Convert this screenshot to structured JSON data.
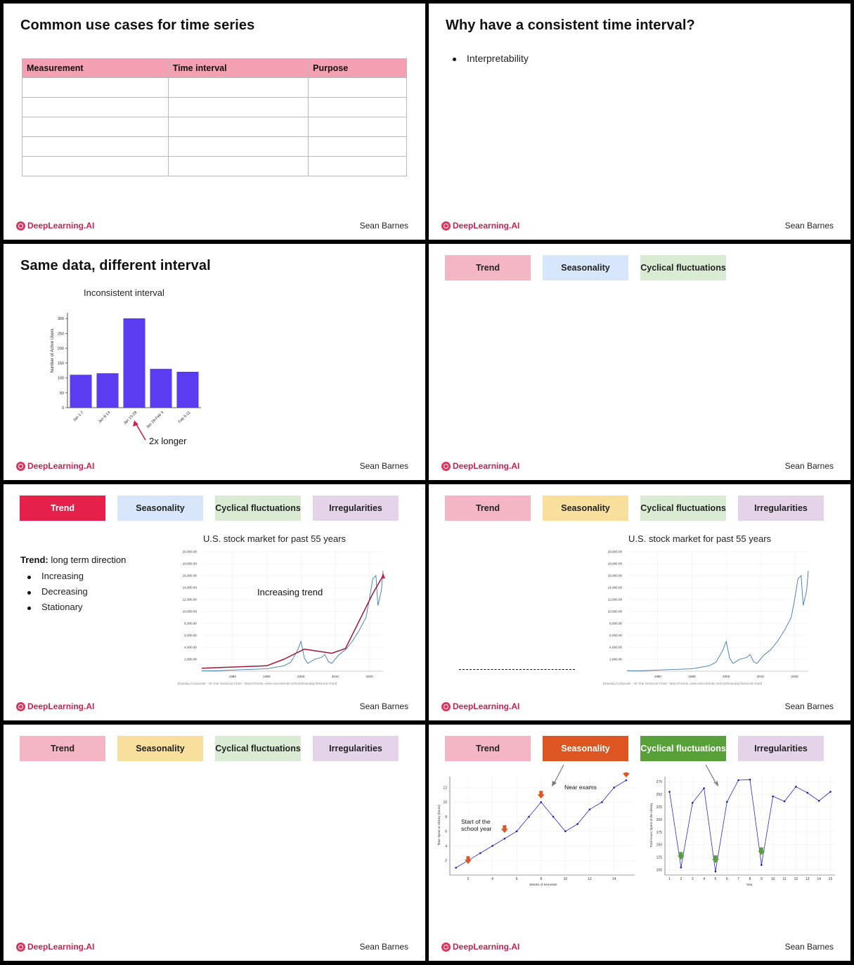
{
  "colors": {
    "brand": "#c8234f",
    "trend_pale": "#f4b6c4",
    "trend_active": "#e5204a",
    "season_blue": "#d8e6fb",
    "season_yellow": "#f9df9d",
    "season_active": "#dd5520",
    "cyc_pale": "#d9ecd3",
    "cyc_active": "#58a03a",
    "irr_pale": "#e5d3ea",
    "bar": "#5b3cf0"
  },
  "common": {
    "logo_text": "DeepLearning.AI",
    "author": "Sean Barnes"
  },
  "tags": {
    "trend": "Trend",
    "seasonality": "Seasonality",
    "cyclical": "Cyclical fluctuations",
    "irregularities": "Irregularities"
  },
  "slide1": {
    "title": "Common use cases for time series",
    "headers": [
      "Measurement",
      "Time interval",
      "Purpose"
    ],
    "rows": [
      [
        "",
        "",
        ""
      ],
      [
        "",
        "",
        ""
      ],
      [
        "",
        "",
        ""
      ],
      [
        "",
        "",
        ""
      ],
      [
        "",
        "",
        ""
      ]
    ]
  },
  "slide2": {
    "title": "Why have a consistent time interval?",
    "bullets": [
      "Interpretability"
    ]
  },
  "slide3": {
    "title": "Same data, different interval",
    "chart_title": "Inconsistent interval",
    "annotation": "2x longer",
    "ylabel": "Number of Active Users"
  },
  "slide5": {
    "definition_term": "Trend:",
    "definition_text": "long term direction",
    "bullets": [
      "Increasing",
      "Decreasing",
      "Stationary"
    ],
    "chart_title": "U.S. stock market for past 55 years",
    "annotation": "Increasing trend",
    "source": "[Nasdaq Composite - 45 Year Historical Chart - MacroTrends, www.macrotrends.net/1320/nasdaq-historical-chart]"
  },
  "slide6": {
    "chart_title": "U.S. stock market for past 55 years",
    "source": "[Nasdaq Composite - 45 Year Historical Chart - MacroTrends, www.macrotrends.net/1320/nasdaq-historical-chart]"
  },
  "slide8": {
    "left_annotation_1": "Start of the",
    "left_annotation_2": "school year",
    "left_annotation_3": "Near exams",
    "left_xlabel": "Weeks of Semester",
    "left_ylabel": "Time Spent at Library (hours)",
    "right_xlabel": "Year",
    "right_ylabel": "Total Hours Spent at the Library"
  },
  "chart_data": [
    {
      "id": "active-users",
      "type": "bar",
      "title": "Inconsistent interval",
      "categories": [
        "Jan 1-7",
        "Jan 8-14",
        "Jan 15-28",
        "Jan 29-Feb 4",
        "Feb 5-11"
      ],
      "values": [
        110,
        115,
        300,
        130,
        120
      ],
      "xlabel": "",
      "ylabel": "Number of Active Users",
      "ylim": [
        0,
        310
      ],
      "yticks": [
        0,
        50,
        100,
        150,
        200,
        250,
        300
      ]
    },
    {
      "id": "nasdaq",
      "type": "line",
      "title": "U.S. stock market for past 55 years",
      "x": [
        1971,
        1975,
        1980,
        1985,
        1990,
        1995,
        1997,
        1999,
        2000,
        2001,
        2002,
        2004,
        2006,
        2007,
        2008,
        2009,
        2011,
        2013,
        2015,
        2017,
        2019,
        2020,
        2021,
        2021.9,
        2022.5,
        2023.5,
        2024
      ],
      "values": [
        100,
        60,
        200,
        300,
        400,
        900,
        1500,
        3500,
        5000,
        2200,
        1300,
        2000,
        2300,
        2800,
        1600,
        1300,
        2700,
        3600,
        5000,
        6800,
        9000,
        12000,
        15500,
        16000,
        11000,
        13500,
        16800
      ],
      "trend": [
        500,
        900,
        2000,
        3700,
        3000,
        3800,
        13000,
        16000
      ],
      "trend_x": [
        1971,
        1990,
        1995,
        2001,
        2009,
        2013,
        2021,
        2024
      ],
      "xlim": [
        1971,
        2024
      ],
      "ylim": [
        0,
        20000
      ],
      "xticks": [
        1980,
        1990,
        2000,
        2010,
        2020
      ],
      "yticks": [
        2000,
        4000,
        6000,
        8000,
        10000,
        12000,
        14000,
        16000,
        18000,
        20000
      ],
      "ytick_labels": [
        "2,000.00",
        "4,000.00",
        "6,000.00",
        "8,000.00",
        "10,000.00",
        "12,000.00",
        "14,000.00",
        "16,000.00",
        "18,000.00",
        "20,000.00"
      ]
    },
    {
      "id": "library-weekly",
      "type": "line",
      "x": [
        1,
        2,
        3,
        4,
        5,
        6,
        7,
        8,
        9,
        10,
        11,
        12,
        13,
        14,
        15
      ],
      "values": [
        1,
        2,
        3,
        4,
        5,
        6,
        8,
        10,
        8,
        6,
        7,
        9,
        10,
        12,
        13
      ],
      "xlabel": "Weeks of Semester",
      "ylabel": "Time Spent at Library (hours)",
      "xticks": [
        2,
        4,
        6,
        8,
        10,
        12,
        14
      ],
      "yticks": [
        2,
        4,
        6,
        8,
        10,
        12
      ],
      "xlim": [
        0.5,
        15.7
      ],
      "ylim": [
        0,
        13.5
      ]
    },
    {
      "id": "library-yearly",
      "type": "line",
      "x": [
        1,
        2,
        3,
        4,
        5,
        6,
        7,
        8,
        9,
        10,
        11,
        12,
        13,
        14,
        15
      ],
      "values": [
        255,
        105,
        233,
        262,
        97,
        235,
        278,
        279,
        110,
        246,
        236,
        265,
        253,
        237,
        255
      ],
      "xlabel": "Year",
      "ylabel": "Total Hours Spent at the Library",
      "xticks": [
        1,
        2,
        3,
        4,
        5,
        6,
        7,
        8,
        9,
        10,
        11,
        12,
        13,
        14,
        15
      ],
      "yticks": [
        100,
        125,
        150,
        175,
        200,
        225,
        250,
        275
      ],
      "xlim": [
        0.6,
        15.4
      ],
      "ylim": [
        90,
        285
      ]
    }
  ]
}
